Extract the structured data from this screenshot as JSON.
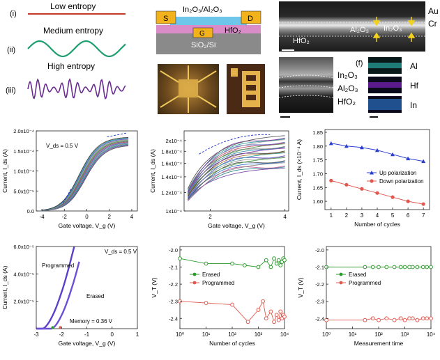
{
  "panel_a": {
    "rows": [
      {
        "roman": "(i)",
        "label": "Low entropy",
        "color": "#c0392b"
      },
      {
        "roman": "(ii)",
        "label": "Medium entropy",
        "color": "#1e9e6e"
      },
      {
        "roman": "(iii)",
        "label": "High entropy",
        "color": "#6a2c91"
      }
    ]
  },
  "device": {
    "channel": "In₂O₃/Al₂O₃",
    "source": "S",
    "drain": "D",
    "gate": "G",
    "dielectric": "HfO₂",
    "substrate": "SiO₂/Si",
    "colors": {
      "contact": "#f2b21c",
      "channel": "#6ec6ea",
      "dielectric": "#d98cc8",
      "substrate": "#8a8a8a",
      "gate": "#f2b21c"
    }
  },
  "tem_top": {
    "au": "Au",
    "cr": "Cr",
    "alox": "Al₂O₃",
    "inox": "In₂O₃",
    "hfo2": "HfO₂"
  },
  "tem_mid": {
    "inox": "In₂O₃",
    "alox": "Al₂O₃",
    "hfo2": "HfO₂"
  },
  "eds": {
    "tag": "(f)",
    "maps": [
      {
        "el": "Al",
        "color": "#2aa6a0"
      },
      {
        "el": "Hf",
        "color": "#6a1fa0"
      },
      {
        "el": "In",
        "color": "#2a6fc0"
      }
    ]
  },
  "chart_data": [
    {
      "type": "line",
      "id": "transfer-linear",
      "annotation": "V_ds = 0.5 V",
      "xlabel": "Gate voltage, V_g (V)",
      "ylabel": "Current, I_ds (A)",
      "xlim": [
        -4.5,
        4.5
      ],
      "ylim": [
        0,
        0.0002
      ],
      "xticks": [
        -4,
        -2,
        0,
        2,
        4
      ],
      "yticks": [
        "0.0",
        "5.0x10⁻⁵",
        "1.0x10⁻⁴",
        "1.5x10⁻⁴",
        "2.0x10⁻⁴"
      ],
      "curves": {
        "count": 12,
        "vmin": -2.8,
        "ymax_range": [
          0.000165,
          0.000185
        ]
      }
    },
    {
      "type": "line",
      "id": "transfer-log",
      "xlabel": "Gate voltage, V_g (V)",
      "ylabel": "Current, I_ds (A)",
      "xlim": [
        1.3,
        4.1
      ],
      "log_y": true,
      "ylim": [
        0.0001,
        0.00022
      ],
      "xticks": [
        2,
        4
      ],
      "yticks": [
        "1x10⁻⁴",
        "1.2x10⁻⁴",
        "1.4x10⁻⁴",
        "1.6x10⁻⁴",
        "1.8x10⁻⁴",
        "2x10⁻⁴"
      ],
      "curves": {
        "count": 22
      }
    },
    {
      "type": "line",
      "id": "polarization",
      "xlabel": "Number of cycles",
      "ylabel": "Current, I_ds (×10⁻⁴ A)",
      "xlim": [
        0.6,
        7.4
      ],
      "ylim": [
        1.57,
        1.86
      ],
      "xticks": [
        1,
        2,
        3,
        4,
        5,
        6,
        7
      ],
      "yticks": [
        1.6,
        1.65,
        1.7,
        1.75,
        1.8,
        1.85
      ],
      "x": [
        1,
        2,
        3,
        4,
        5,
        6,
        7
      ],
      "series": [
        {
          "name": "Up polarization",
          "color": "#2a3fd1",
          "marker": "triangle",
          "values": [
            1.81,
            1.8,
            1.795,
            1.785,
            1.77,
            1.755,
            1.745
          ]
        },
        {
          "name": "Down polarization",
          "color": "#e0584f",
          "marker": "circle",
          "values": [
            1.675,
            1.66,
            1.645,
            1.63,
            1.615,
            1.6,
            1.59
          ]
        }
      ]
    },
    {
      "type": "line",
      "id": "memory-window",
      "annotation": "V_ds = 0.5 V",
      "memory_label": "Memory = 0.36 V",
      "xlabel": "Gate voltage, V_g (V)",
      "ylabel": "Current, I_ds (A)",
      "xlim": [
        -3,
        1
      ],
      "ylim": [
        0,
        6e-05
      ],
      "xticks": [
        -3,
        -2,
        -1,
        0,
        1
      ],
      "yticks": [
        "2.0x10⁻⁵",
        "4.0x10⁻⁵",
        "6.0x10⁻⁵"
      ],
      "series": [
        {
          "name": "Programmed",
          "color": "#5b3fc8",
          "vt": -2.4
        },
        {
          "name": "Erased",
          "color": "#6a4fd6",
          "vt": -2.05
        }
      ]
    },
    {
      "type": "line",
      "id": "endurance",
      "xlabel": "Number of cycles",
      "ylabel": "V_T (V)",
      "log_x": true,
      "xlim": [
        1,
        10000
      ],
      "ylim": [
        -2.46,
        -1.98
      ],
      "xticks": [
        "10⁰",
        "10¹",
        "10²",
        "10³",
        "10⁴"
      ],
      "yticks": [
        -2.0,
        -2.1,
        -2.2,
        -2.3,
        -2.4
      ],
      "series": [
        {
          "name": "Erased",
          "color": "#2e9b2e",
          "points": [
            [
              1,
              -2.05
            ],
            [
              10,
              -2.08
            ],
            [
              100,
              -2.08
            ],
            [
              300,
              -2.09
            ],
            [
              1000,
              -2.1
            ],
            [
              2000,
              -2.06
            ],
            [
              3000,
              -2.1
            ],
            [
              4000,
              -2.05
            ],
            [
              5000,
              -2.08
            ],
            [
              6000,
              -2.06
            ],
            [
              7000,
              -2.09
            ],
            [
              8000,
              -2.07
            ],
            [
              9000,
              -2.05
            ],
            [
              10000,
              -2.06
            ]
          ]
        },
        {
          "name": "Programmed",
          "color": "#e0584f",
          "points": [
            [
              1,
              -2.3
            ],
            [
              10,
              -2.31
            ],
            [
              100,
              -2.32
            ],
            [
              400,
              -2.42
            ],
            [
              1000,
              -2.35
            ],
            [
              1500,
              -2.3
            ],
            [
              2000,
              -2.4
            ],
            [
              3000,
              -2.36
            ],
            [
              4000,
              -2.42
            ],
            [
              5000,
              -2.38
            ],
            [
              6000,
              -2.41
            ],
            [
              7000,
              -2.36
            ],
            [
              8000,
              -2.4
            ],
            [
              9000,
              -2.38
            ],
            [
              10000,
              -2.39
            ]
          ]
        }
      ]
    },
    {
      "type": "line",
      "id": "retention",
      "xlabel": "Measurement time",
      "ylabel": "V_T (V)",
      "log_x": true,
      "xlim": [
        1,
        10000
      ],
      "ylim": [
        -2.46,
        -1.98
      ],
      "xticks": [
        "10⁰",
        "10¹",
        "10²",
        "10³",
        "10⁴"
      ],
      "yticks": [
        -2.0,
        -2.1,
        -2.2,
        -2.3,
        -2.4
      ],
      "series": [
        {
          "name": "Erased",
          "color": "#2e9b2e",
          "points": [
            [
              1,
              -2.1
            ],
            [
              30,
              -2.1
            ],
            [
              60,
              -2.1
            ],
            [
              100,
              -2.1
            ],
            [
              200,
              -2.1
            ],
            [
              400,
              -2.1
            ],
            [
              700,
              -2.1
            ],
            [
              1000,
              -2.1
            ],
            [
              1500,
              -2.1
            ],
            [
              2000,
              -2.1
            ],
            [
              3000,
              -2.1
            ],
            [
              5000,
              -2.1
            ],
            [
              7000,
              -2.1
            ],
            [
              10000,
              -2.1
            ]
          ]
        },
        {
          "name": "Programmed",
          "color": "#e0584f",
          "points": [
            [
              1,
              -2.41
            ],
            [
              30,
              -2.41
            ],
            [
              60,
              -2.4
            ],
            [
              100,
              -2.41
            ],
            [
              200,
              -2.4
            ],
            [
              400,
              -2.41
            ],
            [
              700,
              -2.4
            ],
            [
              1000,
              -2.41
            ],
            [
              1500,
              -2.4
            ],
            [
              2000,
              -2.4
            ],
            [
              3000,
              -2.41
            ],
            [
              5000,
              -2.4
            ],
            [
              7000,
              -2.4
            ],
            [
              10000,
              -2.4
            ]
          ]
        }
      ]
    }
  ]
}
